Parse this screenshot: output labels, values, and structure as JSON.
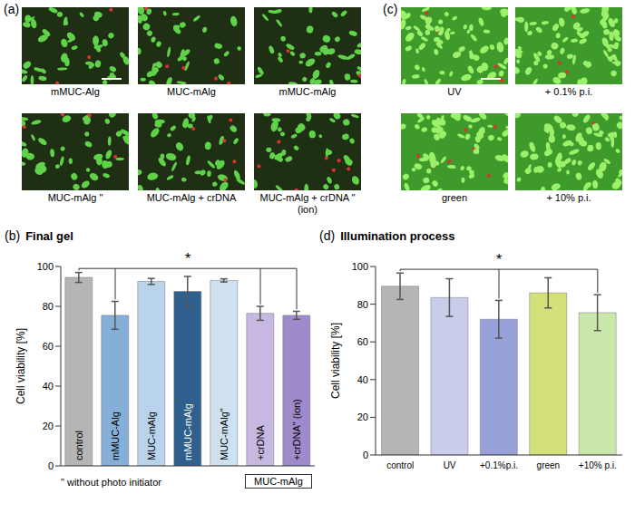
{
  "image_panels": [
    {
      "panel_label": "(a)",
      "captions": [
        "mMUC-Alg",
        "MUC-mAlg",
        "mMUC-mAlg",
        "MUC-mAlg \"",
        "MUC-mAlg + crDNA",
        "MUC-mAlg + crDNA \" (ion)"
      ]
    },
    {
      "panel_label": "(c)",
      "captions": [
        "UV",
        "+ 0.1% p.i.",
        "green",
        "+ 10% p.i."
      ]
    }
  ],
  "chart_data": [
    {
      "panel_label": "(b)",
      "type": "bar",
      "title": "Final gel",
      "y_label": "Cell viability [%]",
      "categories": [
        "control",
        "mMUC-Alg",
        "MUC-mAlg",
        "mMUC-mAlg",
        "MUC-mAlg\"",
        "+crDNA",
        "+crDNA\" (ion)"
      ],
      "values": [
        94.5,
        75.5,
        92.5,
        87.5,
        93,
        76.5,
        75.5
      ],
      "errors": [
        2.5,
        7,
        1.5,
        7.5,
        0.8,
        3.5,
        2
      ],
      "colors": [
        "#b5b5b5",
        "#86afd8",
        "#b9d3eb",
        "#2f5f8c",
        "#cfe0f0",
        "#c7b8e2",
        "#9e8bcb"
      ],
      "ylim": [
        0,
        100
      ],
      "yticks": [
        0,
        20,
        40,
        60,
        80,
        100
      ],
      "grid": false,
      "tick_labels": "y",
      "significance": [
        {
          "from": "control",
          "to": [
            "mMUC-Alg",
            "+crDNA",
            "+crDNA\" (ion)"
          ],
          "label": "*"
        }
      ],
      "group": {
        "label": "MUC-mAlg",
        "categories": [
          "+crDNA",
          "+crDNA\" (ion)"
        ]
      },
      "footnote": "\" without photo initiator"
    },
    {
      "panel_label": "(d)",
      "type": "bar",
      "title": "Illumination process",
      "y_label": "Cell viability [%]",
      "categories": [
        "control",
        "UV",
        "+0.1%p.i.",
        "green",
        "+10% p.i."
      ],
      "values": [
        89.5,
        83.5,
        72,
        86,
        75.5
      ],
      "errors": [
        7,
        10,
        10,
        8,
        9.5
      ],
      "colors": [
        "#b5b5b5",
        "#c9cdea",
        "#99a2d8",
        "#d4e07a",
        "#cbe8ac"
      ],
      "ylim": [
        0,
        100
      ],
      "yticks": [
        0,
        20,
        40,
        60,
        80,
        100
      ],
      "grid": false,
      "significance": [
        {
          "from": "control",
          "to": [
            "+0.1%p.i.",
            "+10% p.i."
          ],
          "label": "*"
        }
      ]
    }
  ]
}
